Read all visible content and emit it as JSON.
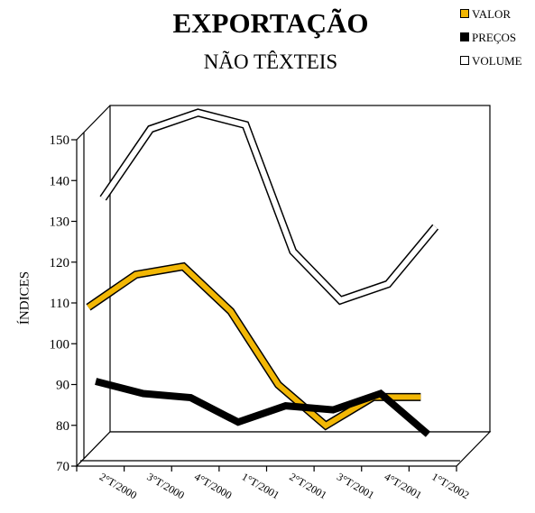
{
  "chart_data": {
    "type": "line",
    "title": "EXPORTAÇÃO",
    "subtitle": "NÃO TÊXTEIS",
    "ylabel": "ÍNDICES",
    "xlabel": "",
    "ylim": [
      70,
      150
    ],
    "yticks": [
      70,
      80,
      90,
      100,
      110,
      120,
      130,
      140,
      150
    ],
    "categories": [
      "2°T/2000",
      "3°T/2000",
      "4°T/2000",
      "1°T/2001",
      "2°T/2001",
      "3°T/2001",
      "4°T/2001",
      "1°T/2002"
    ],
    "legend_position": "top-right",
    "grid": false,
    "series": [
      {
        "name": "VALOR",
        "color": "#f2b705",
        "values": [
          106,
          114,
          116,
          105,
          87,
          77,
          84,
          84
        ]
      },
      {
        "name": "PREÇOS",
        "color": "#000000",
        "values": [
          86,
          83,
          82,
          76,
          80,
          79,
          83,
          73
        ]
      },
      {
        "name": "VOLUME",
        "color": "#ffffff",
        "values": [
          129,
          146,
          150,
          147,
          116,
          104,
          108,
          122
        ]
      }
    ]
  }
}
